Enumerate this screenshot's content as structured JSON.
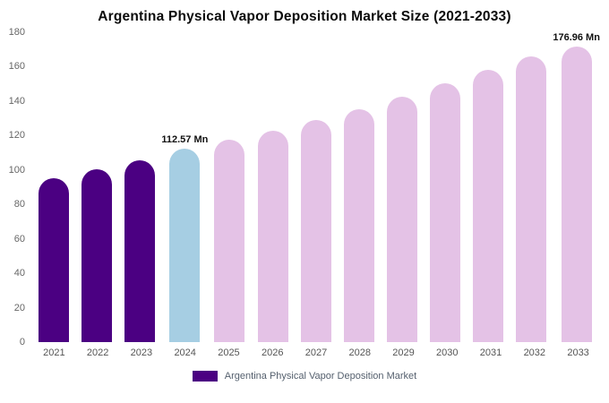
{
  "title": "Argentina Physical Vapor Deposition Market Size (2021-2033)",
  "legend": {
    "label": "Argentina Physical Vapor Deposition Market",
    "swatch_color": "#4B0082"
  },
  "chart_data": {
    "type": "bar",
    "title": "Argentina Physical Vapor Deposition Market Size (2021-2033)",
    "xlabel": "",
    "ylabel": "",
    "unit": "Mn",
    "categories": [
      "2021",
      "2022",
      "2023",
      "2024",
      "2025",
      "2026",
      "2027",
      "2028",
      "2029",
      "2030",
      "2031",
      "2032",
      "2033"
    ],
    "values": [
      95.2,
      100.4,
      105.8,
      112.57,
      117.6,
      122.9,
      128.8,
      135.5,
      142.5,
      150.4,
      157.9,
      166.2,
      176.96
    ],
    "bar_colors": [
      "past",
      "past",
      "past",
      "current",
      "forecast",
      "forecast",
      "forecast",
      "forecast",
      "forecast",
      "forecast",
      "forecast",
      "forecast",
      "forecast"
    ],
    "palette": {
      "past": "#4B0082",
      "current": "#A6CEE3",
      "forecast": "#E4C2E6"
    },
    "annotations": [
      {
        "category": "2024",
        "label": "112.57 Mn"
      },
      {
        "category": "2033",
        "label": "176.96 Mn"
      }
    ],
    "ylim": [
      0,
      180
    ],
    "yticks": [
      0,
      20,
      40,
      60,
      80,
      100,
      120,
      140,
      160,
      180
    ],
    "grid": false,
    "legend_position": "bottom"
  }
}
